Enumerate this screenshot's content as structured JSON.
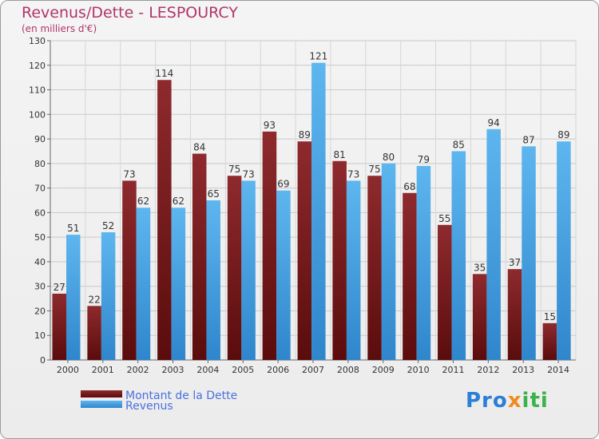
{
  "title": "Revenus/Dette - LESPOURCY",
  "subtitle": "(en milliers d'€)",
  "logo": {
    "text": "Proxiti"
  },
  "chart_data": {
    "type": "bar",
    "categories": [
      "2000",
      "2001",
      "2002",
      "2003",
      "2004",
      "2005",
      "2006",
      "2007",
      "2008",
      "2009",
      "2010",
      "2011",
      "2012",
      "2013",
      "2014"
    ],
    "series": [
      {
        "name": "Montant de la Dette",
        "color": "#7a1c1c",
        "values": [
          27,
          22,
          73,
          114,
          84,
          75,
          93,
          89,
          81,
          75,
          68,
          55,
          35,
          37,
          15
        ]
      },
      {
        "name": "Revenus",
        "color": "#4aa6e6",
        "values": [
          51,
          52,
          62,
          62,
          65,
          73,
          69,
          121,
          73,
          80,
          79,
          85,
          94,
          87,
          89
        ]
      }
    ],
    "ylim": [
      0,
      130
    ],
    "ytick_step": 10,
    "grid": true,
    "legend": "bottom-left"
  }
}
